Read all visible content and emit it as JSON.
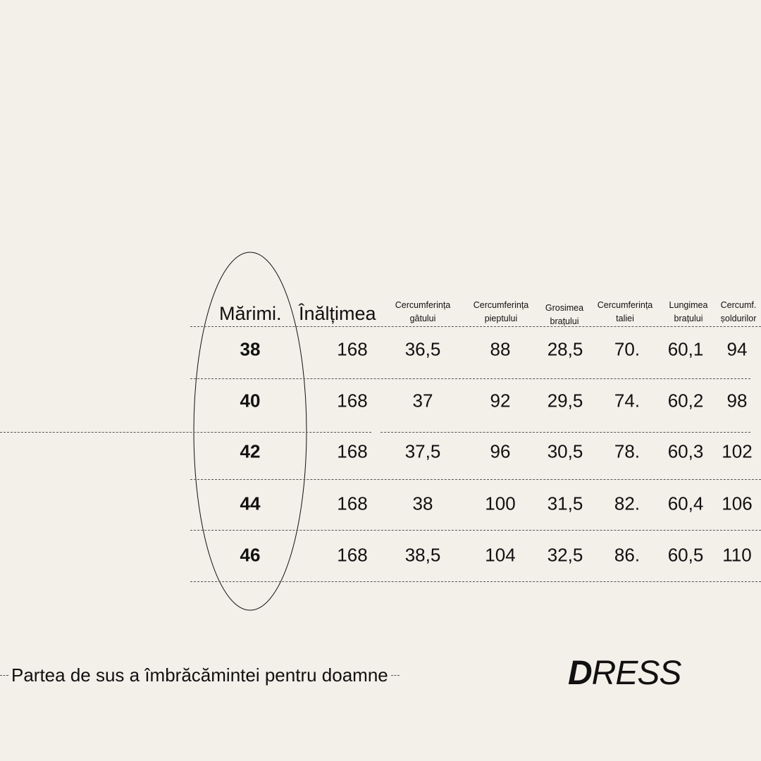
{
  "table": {
    "headers": [
      {
        "line1": "Mărimi.",
        "line2": ""
      },
      {
        "line1": "Înălțimea",
        "line2": ""
      },
      {
        "line1": "Cercumferința",
        "line2": "gâtului"
      },
      {
        "line1": "Cercumferința",
        "line2": "pieptului"
      },
      {
        "line1": "Grosimea",
        "line2": "brațului"
      },
      {
        "line1": "Cercumferința",
        "line2": "taliei"
      },
      {
        "line1": "Lungimea",
        "line2": "brațului"
      },
      {
        "line1": "Cercumf.",
        "line2": "șoldurilor"
      }
    ],
    "rows": [
      [
        "38",
        "168",
        "36,5",
        "88",
        "28,5",
        "70.",
        "60,1",
        "94"
      ],
      [
        "40",
        "168",
        "37",
        "92",
        "29,5",
        "74.",
        "60,2",
        "98"
      ],
      [
        "42",
        "168",
        "37,5",
        "96",
        "30,5",
        "78.",
        "60,3",
        "102"
      ],
      [
        "44",
        "168",
        "38",
        "100",
        "31,5",
        "82.",
        "60,4",
        "106"
      ],
      [
        "46",
        "168",
        "38,5",
        "104",
        "32,5",
        "86.",
        "60,5",
        "110"
      ]
    ]
  },
  "footer": {
    "caption": "Partea de sus a îmbrăcămintei pentru doamne"
  },
  "brand": {
    "first": "D",
    "rest": "RESS"
  }
}
